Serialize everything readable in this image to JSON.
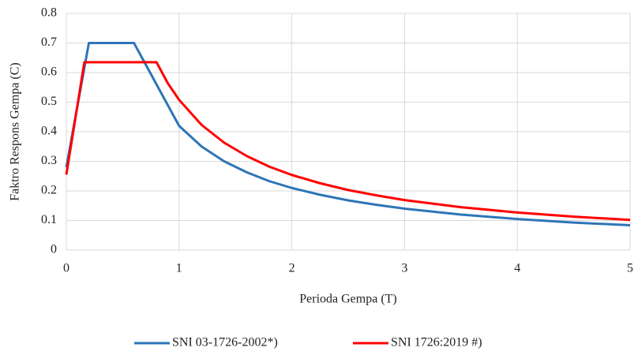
{
  "chart_data": {
    "type": "line",
    "x_label": "Perioda Gempa (T)",
    "y_label": "Faktro Respons Gempa (C)",
    "xlim": [
      0,
      5
    ],
    "xticks": [
      0,
      1,
      2,
      3,
      4,
      5
    ],
    "ylim": [
      0,
      0.8
    ],
    "yticks": [
      0,
      0.1,
      0.2,
      0.3,
      0.4,
      0.5,
      0.6,
      0.7,
      0.8
    ],
    "grid": true,
    "legend": "bottom",
    "series": [
      {
        "name": "SNI 03-1726-2002*)",
        "color": "#2e75b6",
        "x": [
          0,
          0.2,
          0.6,
          1,
          1.2,
          1.4,
          1.6,
          1.8,
          2,
          2.25,
          2.5,
          2.75,
          3,
          3.5,
          4,
          4.5,
          5
        ],
        "values": [
          0.28,
          0.7,
          0.7,
          0.42,
          0.35,
          0.3,
          0.263,
          0.233,
          0.21,
          0.187,
          0.168,
          0.153,
          0.14,
          0.12,
          0.105,
          0.093,
          0.084
        ]
      },
      {
        "name": "SNI 1726:2019 #)",
        "color": "#ff0000",
        "x": [
          0,
          0.16,
          0.8,
          0.9,
          1,
          1.2,
          1.4,
          1.6,
          1.8,
          2,
          2.25,
          2.5,
          2.75,
          3,
          3.5,
          4,
          4.5,
          5
        ],
        "values": [
          0.255,
          0.635,
          0.635,
          0.564,
          0.508,
          0.423,
          0.363,
          0.318,
          0.282,
          0.254,
          0.226,
          0.203,
          0.185,
          0.169,
          0.145,
          0.127,
          0.113,
          0.102
        ]
      }
    ]
  }
}
